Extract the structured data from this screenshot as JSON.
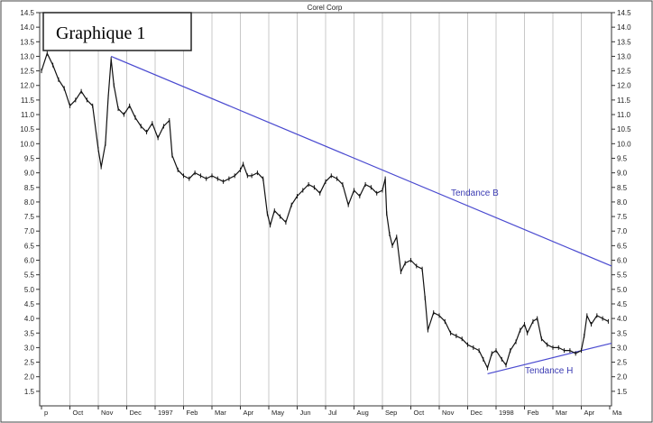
{
  "chart_data": {
    "type": "line",
    "title": "Corel Corp",
    "label_box": "Graphique 1",
    "ylim": [
      1.0,
      14.5
    ],
    "y_ticks": [
      "1.5",
      "2.0",
      "2.5",
      "3.0",
      "3.5",
      "4.0",
      "4.5",
      "5.0",
      "5.5",
      "6.0",
      "6.5",
      "7.0",
      "7.5",
      "8.0",
      "8.5",
      "9.0",
      "9.5",
      "10.0",
      "10.5",
      "11.0",
      "11.5",
      "12.0",
      "12.5",
      "13.0",
      "13.5",
      "14.0",
      "14.5"
    ],
    "x_tick_labels": [
      "p",
      "Oct",
      "Nov",
      "Dec",
      "1997",
      "Feb",
      "Mar",
      "Apr",
      "May",
      "Jun",
      "Jul",
      "Aug",
      "Sep",
      "Oct",
      "Nov",
      "Dec",
      "1998",
      "Feb",
      "Mar",
      "Apr",
      "Ma"
    ],
    "grid": true,
    "colors": {
      "price": "#111111",
      "trend": "#4a4ad0",
      "grid": "#c8c8c8",
      "frame": "#333333"
    },
    "series": [
      {
        "values": [
          [
            0,
            12.5
          ],
          [
            0.2,
            13.1
          ],
          [
            0.4,
            12.7
          ],
          [
            0.6,
            12.2
          ],
          [
            0.8,
            11.9
          ],
          [
            1.0,
            11.3
          ],
          [
            1.2,
            11.5
          ],
          [
            1.4,
            11.8
          ],
          [
            1.6,
            11.5
          ],
          [
            1.8,
            11.3
          ],
          [
            2.0,
            9.8
          ],
          [
            2.1,
            9.2
          ],
          [
            2.25,
            10.0
          ],
          [
            2.35,
            11.6
          ],
          [
            2.45,
            12.9
          ],
          [
            2.55,
            12.0
          ],
          [
            2.7,
            11.2
          ],
          [
            2.9,
            11.0
          ],
          [
            3.1,
            11.3
          ],
          [
            3.3,
            10.9
          ],
          [
            3.5,
            10.6
          ],
          [
            3.7,
            10.4
          ],
          [
            3.9,
            10.7
          ],
          [
            4.1,
            10.2
          ],
          [
            4.3,
            10.6
          ],
          [
            4.5,
            10.8
          ],
          [
            4.6,
            9.6
          ],
          [
            4.8,
            9.1
          ],
          [
            5.0,
            8.9
          ],
          [
            5.2,
            8.8
          ],
          [
            5.4,
            9.0
          ],
          [
            5.6,
            8.9
          ],
          [
            5.8,
            8.8
          ],
          [
            6.0,
            8.9
          ],
          [
            6.2,
            8.8
          ],
          [
            6.4,
            8.7
          ],
          [
            6.6,
            8.8
          ],
          [
            6.8,
            8.9
          ],
          [
            7.0,
            9.1
          ],
          [
            7.1,
            9.3
          ],
          [
            7.25,
            8.9
          ],
          [
            7.4,
            8.9
          ],
          [
            7.6,
            9.0
          ],
          [
            7.8,
            8.8
          ],
          [
            7.95,
            7.6
          ],
          [
            8.05,
            7.2
          ],
          [
            8.2,
            7.7
          ],
          [
            8.4,
            7.5
          ],
          [
            8.6,
            7.3
          ],
          [
            8.8,
            7.9
          ],
          [
            9.0,
            8.2
          ],
          [
            9.2,
            8.4
          ],
          [
            9.4,
            8.6
          ],
          [
            9.6,
            8.5
          ],
          [
            9.8,
            8.3
          ],
          [
            10.0,
            8.7
          ],
          [
            10.2,
            8.9
          ],
          [
            10.4,
            8.8
          ],
          [
            10.6,
            8.6
          ],
          [
            10.8,
            7.9
          ],
          [
            11.0,
            8.4
          ],
          [
            11.2,
            8.2
          ],
          [
            11.4,
            8.6
          ],
          [
            11.6,
            8.5
          ],
          [
            11.8,
            8.3
          ],
          [
            12.0,
            8.4
          ],
          [
            12.1,
            8.8
          ],
          [
            12.15,
            7.6
          ],
          [
            12.25,
            6.9
          ],
          [
            12.35,
            6.5
          ],
          [
            12.5,
            6.8
          ],
          [
            12.65,
            5.6
          ],
          [
            12.8,
            5.9
          ],
          [
            13.0,
            6.0
          ],
          [
            13.2,
            5.8
          ],
          [
            13.4,
            5.7
          ],
          [
            13.5,
            4.7
          ],
          [
            13.6,
            3.6
          ],
          [
            13.8,
            4.2
          ],
          [
            14.0,
            4.1
          ],
          [
            14.2,
            3.9
          ],
          [
            14.4,
            3.5
          ],
          [
            14.6,
            3.4
          ],
          [
            14.8,
            3.3
          ],
          [
            15.0,
            3.1
          ],
          [
            15.2,
            3.0
          ],
          [
            15.4,
            2.9
          ],
          [
            15.55,
            2.6
          ],
          [
            15.7,
            2.3
          ],
          [
            15.85,
            2.8
          ],
          [
            16.0,
            2.9
          ],
          [
            16.2,
            2.6
          ],
          [
            16.35,
            2.4
          ],
          [
            16.5,
            2.9
          ],
          [
            16.7,
            3.2
          ],
          [
            16.85,
            3.6
          ],
          [
            17.0,
            3.8
          ],
          [
            17.1,
            3.5
          ],
          [
            17.3,
            3.9
          ],
          [
            17.45,
            4.0
          ],
          [
            17.6,
            3.3
          ],
          [
            17.8,
            3.1
          ],
          [
            18.0,
            3.0
          ],
          [
            18.2,
            3.0
          ],
          [
            18.4,
            2.9
          ],
          [
            18.6,
            2.9
          ],
          [
            18.8,
            2.8
          ],
          [
            19.0,
            2.9
          ],
          [
            19.1,
            3.4
          ],
          [
            19.2,
            4.1
          ],
          [
            19.35,
            3.8
          ],
          [
            19.55,
            4.1
          ],
          [
            19.75,
            4.0
          ],
          [
            19.95,
            3.9
          ]
        ]
      }
    ],
    "trendlines": [
      {
        "label": "Tendance B",
        "from": [
          2.45,
          13.0
        ],
        "to": [
          20.8,
          5.8
        ]
      },
      {
        "label": "Tendance H",
        "from": [
          15.7,
          2.1
        ],
        "to": [
          20.8,
          3.15
        ]
      }
    ]
  }
}
